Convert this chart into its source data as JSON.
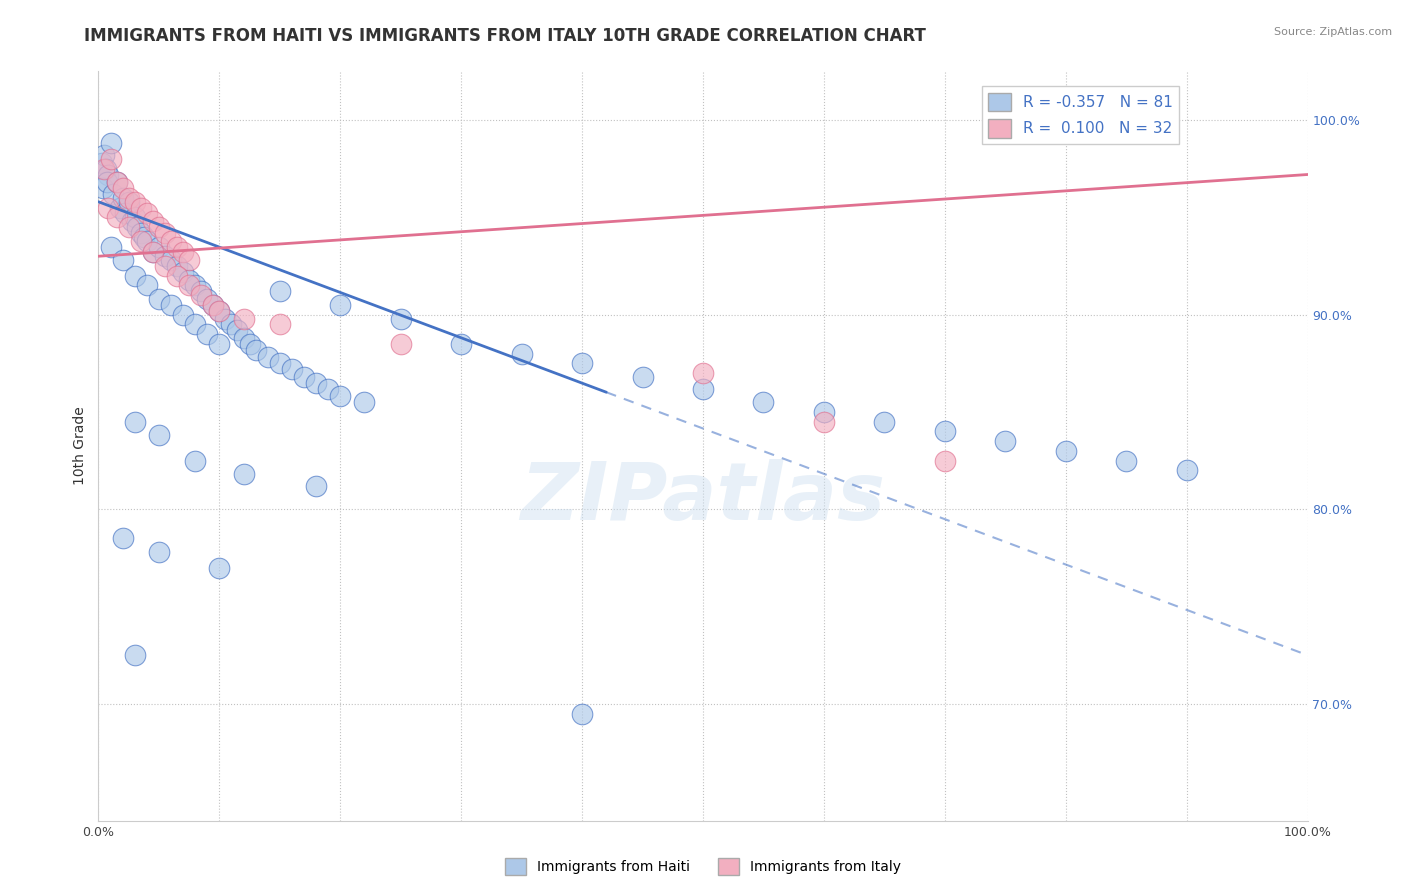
{
  "title": "IMMIGRANTS FROM HAITI VS IMMIGRANTS FROM ITALY 10TH GRADE CORRELATION CHART",
  "source": "Source: ZipAtlas.com",
  "ylabel": "10th Grade",
  "xlim": [
    0.0,
    100.0
  ],
  "ylim": [
    64.0,
    102.5
  ],
  "ytick_values": [
    70.0,
    80.0,
    90.0,
    100.0
  ],
  "xtick_values": [
    0.0,
    10.0,
    20.0,
    30.0,
    40.0,
    50.0,
    60.0,
    70.0,
    80.0,
    90.0,
    100.0
  ],
  "haiti_R": -0.357,
  "haiti_N": 81,
  "italy_R": 0.1,
  "italy_N": 32,
  "haiti_color": "#adc8e8",
  "italy_color": "#f2afc0",
  "haiti_line_color": "#4472c4",
  "italy_line_color": "#e07090",
  "haiti_trend_x0": 0.0,
  "haiti_trend_y0": 95.8,
  "haiti_trend_x1": 100.0,
  "haiti_trend_y1": 72.5,
  "haiti_solid_end": 42.0,
  "italy_trend_x0": 0.0,
  "italy_trend_y0": 93.0,
  "italy_trend_x1": 100.0,
  "italy_trend_y1": 97.2,
  "haiti_scatter": [
    [
      0.3,
      97.8
    ],
    [
      0.5,
      98.2
    ],
    [
      0.6,
      97.5
    ],
    [
      0.8,
      97.2
    ],
    [
      1.0,
      98.8
    ],
    [
      0.4,
      96.5
    ],
    [
      0.7,
      96.8
    ],
    [
      1.2,
      96.2
    ],
    [
      1.5,
      96.8
    ],
    [
      1.8,
      95.5
    ],
    [
      2.0,
      96.0
    ],
    [
      2.2,
      95.2
    ],
    [
      2.5,
      95.8
    ],
    [
      2.8,
      94.8
    ],
    [
      3.0,
      95.0
    ],
    [
      3.2,
      94.5
    ],
    [
      3.5,
      94.2
    ],
    [
      3.8,
      94.0
    ],
    [
      4.0,
      93.8
    ],
    [
      4.5,
      93.2
    ],
    [
      5.0,
      93.5
    ],
    [
      5.5,
      93.0
    ],
    [
      6.0,
      92.8
    ],
    [
      6.5,
      92.5
    ],
    [
      7.0,
      92.2
    ],
    [
      7.5,
      91.8
    ],
    [
      8.0,
      91.5
    ],
    [
      8.5,
      91.2
    ],
    [
      9.0,
      90.8
    ],
    [
      9.5,
      90.5
    ],
    [
      10.0,
      90.2
    ],
    [
      10.5,
      89.8
    ],
    [
      11.0,
      89.5
    ],
    [
      11.5,
      89.2
    ],
    [
      12.0,
      88.8
    ],
    [
      12.5,
      88.5
    ],
    [
      13.0,
      88.2
    ],
    [
      14.0,
      87.8
    ],
    [
      15.0,
      87.5
    ],
    [
      16.0,
      87.2
    ],
    [
      17.0,
      86.8
    ],
    [
      18.0,
      86.5
    ],
    [
      19.0,
      86.2
    ],
    [
      20.0,
      85.8
    ],
    [
      22.0,
      85.5
    ],
    [
      1.0,
      93.5
    ],
    [
      2.0,
      92.8
    ],
    [
      3.0,
      92.0
    ],
    [
      4.0,
      91.5
    ],
    [
      5.0,
      90.8
    ],
    [
      6.0,
      90.5
    ],
    [
      7.0,
      90.0
    ],
    [
      8.0,
      89.5
    ],
    [
      9.0,
      89.0
    ],
    [
      10.0,
      88.5
    ],
    [
      15.0,
      91.2
    ],
    [
      20.0,
      90.5
    ],
    [
      25.0,
      89.8
    ],
    [
      30.0,
      88.5
    ],
    [
      35.0,
      88.0
    ],
    [
      40.0,
      87.5
    ],
    [
      45.0,
      86.8
    ],
    [
      50.0,
      86.2
    ],
    [
      55.0,
      85.5
    ],
    [
      60.0,
      85.0
    ],
    [
      65.0,
      84.5
    ],
    [
      70.0,
      84.0
    ],
    [
      75.0,
      83.5
    ],
    [
      80.0,
      83.0
    ],
    [
      85.0,
      82.5
    ],
    [
      90.0,
      82.0
    ],
    [
      3.0,
      84.5
    ],
    [
      5.0,
      83.8
    ],
    [
      8.0,
      82.5
    ],
    [
      12.0,
      81.8
    ],
    [
      18.0,
      81.2
    ],
    [
      2.0,
      78.5
    ],
    [
      5.0,
      77.8
    ],
    [
      10.0,
      77.0
    ],
    [
      3.0,
      72.5
    ],
    [
      40.0,
      69.5
    ]
  ],
  "italy_scatter": [
    [
      0.5,
      97.5
    ],
    [
      1.0,
      98.0
    ],
    [
      1.5,
      96.8
    ],
    [
      2.0,
      96.5
    ],
    [
      2.5,
      96.0
    ],
    [
      3.0,
      95.8
    ],
    [
      3.5,
      95.5
    ],
    [
      4.0,
      95.2
    ],
    [
      4.5,
      94.8
    ],
    [
      5.0,
      94.5
    ],
    [
      5.5,
      94.2
    ],
    [
      6.0,
      93.8
    ],
    [
      6.5,
      93.5
    ],
    [
      7.0,
      93.2
    ],
    [
      7.5,
      92.8
    ],
    [
      0.8,
      95.5
    ],
    [
      1.5,
      95.0
    ],
    [
      2.5,
      94.5
    ],
    [
      3.5,
      93.8
    ],
    [
      4.5,
      93.2
    ],
    [
      5.5,
      92.5
    ],
    [
      6.5,
      92.0
    ],
    [
      7.5,
      91.5
    ],
    [
      8.5,
      91.0
    ],
    [
      9.5,
      90.5
    ],
    [
      10.0,
      90.2
    ],
    [
      12.0,
      89.8
    ],
    [
      15.0,
      89.5
    ],
    [
      25.0,
      88.5
    ],
    [
      50.0,
      87.0
    ],
    [
      60.0,
      84.5
    ],
    [
      70.0,
      82.5
    ]
  ],
  "watermark": "ZIPatlas",
  "background_color": "#ffffff",
  "grid_color": "#bbbbbb",
  "right_axis_color": "#4472c4",
  "title_fontsize": 12,
  "axis_label_fontsize": 10,
  "tick_fontsize": 9
}
